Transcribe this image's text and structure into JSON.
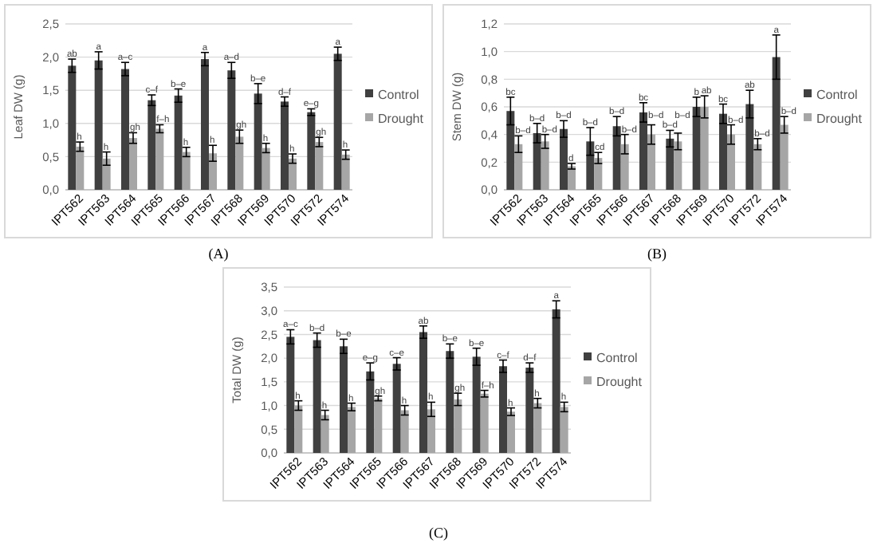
{
  "chart_data": [
    {
      "type": "bar",
      "ylabel": "Leaf DW (g)",
      "annotations": [
        "(A)"
      ],
      "categories": [
        "IPT562",
        "IPT563",
        "IPT564",
        "IPT565",
        "IPT566",
        "IPT567",
        "IPT568",
        "IPT569",
        "IPT570",
        "IPT572",
        "IPT574"
      ],
      "ylim": [
        0,
        2.5
      ],
      "yticks": [
        {
          "value": 0,
          "label": "0,0"
        },
        {
          "value": 0.5,
          "label": "0,5"
        },
        {
          "value": 1,
          "label": "1,0"
        },
        {
          "value": 1.5,
          "label": "1,5"
        },
        {
          "value": 2,
          "label": "2,0"
        },
        {
          "value": 2.5,
          "label": "2,5"
        }
      ],
      "grid": "y",
      "legend": "right",
      "series": [
        {
          "name": "Control",
          "color": "#404040",
          "values": [
            1.87,
            1.95,
            1.82,
            1.35,
            1.42,
            1.97,
            1.8,
            1.45,
            1.33,
            1.17,
            2.05
          ],
          "errors": [
            0.1,
            0.13,
            0.1,
            0.08,
            0.1,
            0.1,
            0.12,
            0.15,
            0.07,
            0.05,
            0.1
          ],
          "value_labels": [
            "ab",
            "a",
            "a–c",
            "c–f",
            "b–e",
            "a",
            "a–d",
            "b–e",
            "d–f",
            "e–g",
            "a"
          ]
        },
        {
          "name": "Drought",
          "color": "#a6a6a6",
          "values": [
            0.65,
            0.47,
            0.78,
            0.92,
            0.57,
            0.55,
            0.8,
            0.63,
            0.47,
            0.72,
            0.53
          ],
          "errors": [
            0.07,
            0.1,
            0.08,
            0.06,
            0.07,
            0.12,
            0.1,
            0.07,
            0.07,
            0.07,
            0.07
          ],
          "value_labels": [
            "h",
            "h",
            "gh",
            "f–h",
            "h",
            "h",
            "gh",
            "h",
            "h",
            "gh",
            "h"
          ]
        }
      ]
    },
    {
      "type": "bar",
      "ylabel": "Stem DW (g)",
      "annotations": [
        "(B)"
      ],
      "categories": [
        "IPT562",
        "IPT563",
        "IPT564",
        "IPT565",
        "IPT566",
        "IPT567",
        "IPT568",
        "IPT569",
        "IPT570",
        "IPT572",
        "IPT574"
      ],
      "ylim": [
        0,
        1.2
      ],
      "yticks": [
        {
          "value": 0,
          "label": "0,0"
        },
        {
          "value": 0.2,
          "label": "0,2"
        },
        {
          "value": 0.4,
          "label": "0,4"
        },
        {
          "value": 0.6,
          "label": "0,6"
        },
        {
          "value": 0.8,
          "label": "0,8"
        },
        {
          "value": 1,
          "label": "1,0"
        },
        {
          "value": 1.2,
          "label": "1,2"
        }
      ],
      "grid": "y",
      "legend": "right",
      "series": [
        {
          "name": "Control",
          "color": "#404040",
          "values": [
            0.57,
            0.41,
            0.44,
            0.35,
            0.46,
            0.56,
            0.37,
            0.6,
            0.55,
            0.62,
            0.96
          ],
          "errors": [
            0.1,
            0.07,
            0.06,
            0.1,
            0.07,
            0.07,
            0.06,
            0.07,
            0.07,
            0.1,
            0.16
          ],
          "value_labels": [
            "bc",
            "b–d",
            "b–d",
            "b–d",
            "b–d",
            "bc",
            "b–d",
            "b",
            "bc",
            "ab",
            "a"
          ]
        },
        {
          "name": "Drought",
          "color": "#a6a6a6",
          "values": [
            0.33,
            0.35,
            0.17,
            0.23,
            0.33,
            0.4,
            0.35,
            0.6,
            0.4,
            0.33,
            0.47
          ],
          "errors": [
            0.06,
            0.05,
            0.02,
            0.04,
            0.07,
            0.07,
            0.06,
            0.08,
            0.07,
            0.04,
            0.06
          ],
          "value_labels": [
            "b–d",
            "b–d",
            "d",
            "cd",
            "b–d",
            "b–d",
            "b–d",
            "ab",
            "b–d",
            "b–d",
            "b–d"
          ]
        }
      ]
    },
    {
      "type": "bar",
      "ylabel": "Total DW (g)",
      "annotations": [
        "(C)"
      ],
      "categories": [
        "IPT562",
        "IPT563",
        "IPT564",
        "IPT565",
        "IPT566",
        "IPT567",
        "IPT568",
        "IPT569",
        "IPT570",
        "IPT572",
        "IPT574"
      ],
      "ylim": [
        0,
        3.5
      ],
      "yticks": [
        {
          "value": 0,
          "label": "0,0"
        },
        {
          "value": 0.5,
          "label": "0,5"
        },
        {
          "value": 1,
          "label": "1,0"
        },
        {
          "value": 1.5,
          "label": "1,5"
        },
        {
          "value": 2,
          "label": "2,0"
        },
        {
          "value": 2.5,
          "label": "2,5"
        },
        {
          "value": 3,
          "label": "3,0"
        },
        {
          "value": 3.5,
          "label": "3,5"
        }
      ],
      "grid": "y",
      "legend": "right",
      "series": [
        {
          "name": "Control",
          "color": "#404040",
          "values": [
            2.45,
            2.38,
            2.25,
            1.72,
            1.88,
            2.55,
            2.15,
            2.03,
            1.83,
            1.8,
            3.03
          ],
          "errors": [
            0.15,
            0.15,
            0.15,
            0.18,
            0.13,
            0.13,
            0.15,
            0.18,
            0.13,
            0.1,
            0.18
          ],
          "value_labels": [
            "a–c",
            "b–d",
            "b–e",
            "e–g",
            "c–e",
            "ab",
            "b–e",
            "b–e",
            "c–f",
            "d–f",
            "a"
          ]
        },
        {
          "name": "Drought",
          "color": "#a6a6a6",
          "values": [
            1.0,
            0.8,
            0.97,
            1.15,
            0.9,
            0.92,
            1.13,
            1.25,
            0.87,
            1.05,
            0.97
          ],
          "errors": [
            0.1,
            0.1,
            0.08,
            0.05,
            0.1,
            0.15,
            0.13,
            0.07,
            0.08,
            0.1,
            0.1
          ],
          "value_labels": [
            "h",
            "h",
            "h",
            "gh",
            "h",
            "h",
            "gh",
            "f–h",
            "h",
            "h",
            "h"
          ]
        }
      ]
    }
  ]
}
